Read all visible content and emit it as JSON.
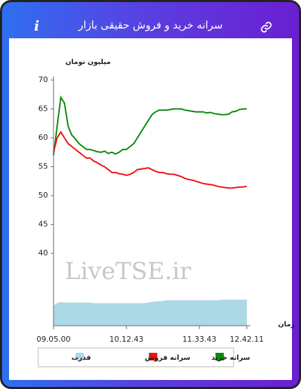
{
  "header": {
    "title": "سرانه خرید و فروش حقیقی بازار",
    "info": "i"
  },
  "chart_data": {
    "type": "line",
    "y_label": "میلیون تومان",
    "x_label": "زمان",
    "watermark": "LiveTSE.ir",
    "categories": [
      "09.05.00",
      null,
      null,
      null,
      null,
      null,
      null,
      null,
      null,
      null,
      null,
      null,
      null,
      null,
      null,
      null,
      null,
      null,
      null,
      null,
      "10.12.43",
      null,
      null,
      null,
      null,
      null,
      null,
      null,
      null,
      null,
      null,
      null,
      null,
      null,
      null,
      null,
      null,
      null,
      null,
      null,
      "11.33.43",
      null,
      null,
      null,
      null,
      null,
      null,
      null,
      null,
      null,
      null,
      null,
      null,
      "12.42.11"
    ],
    "ylim": [
      27.5,
      70
    ],
    "yticks": [
      40,
      45,
      50,
      55,
      60,
      65,
      70
    ],
    "series": [
      {
        "name": "سرانه خرید",
        "color": "#0a8a0a",
        "values": [
          57,
          62,
          67,
          66,
          62,
          60.5,
          59.8,
          59,
          58.5,
          58,
          58,
          57.8,
          57.6,
          57.5,
          57.7,
          57.3,
          57.5,
          57.2,
          57.5,
          58,
          58,
          58.5,
          59,
          60,
          61,
          62,
          63,
          64,
          64.5,
          64.8,
          64.8,
          64.8,
          64.9,
          65,
          65,
          65,
          64.8,
          64.7,
          64.6,
          64.5,
          64.5,
          64.5,
          64.3,
          64.4,
          64.2,
          64.1,
          64,
          64,
          64.1,
          64.5,
          64.6,
          64.9,
          65,
          65
        ]
      },
      {
        "name": "سرانه فروش",
        "color": "#ee1111",
        "values": [
          57.5,
          60,
          61,
          60,
          59,
          58.5,
          58,
          57.5,
          57,
          56.5,
          56.5,
          56,
          55.7,
          55.3,
          55,
          54.5,
          54,
          54,
          53.8,
          53.7,
          53.5,
          53.7,
          54,
          54.5,
          54.6,
          54.7,
          54.8,
          54.5,
          54.2,
          54,
          54,
          53.8,
          53.7,
          53.7,
          53.5,
          53.3,
          53,
          52.8,
          52.7,
          52.5,
          52.3,
          52.1,
          52,
          51.9,
          51.8,
          51.6,
          51.5,
          51.4,
          51.3,
          51.3,
          51.4,
          51.5,
          51.5,
          51.6
        ]
      },
      {
        "name": "قدرت",
        "color": "#add8e6",
        "kind": "area",
        "values": [
          31,
          31.4,
          31.6,
          31.5,
          31.5,
          31.5,
          31.5,
          31.5,
          31.5,
          31.5,
          31.5,
          31.4,
          31.4,
          31.4,
          31.4,
          31.4,
          31.4,
          31.4,
          31.4,
          31.4,
          31.4,
          31.4,
          31.4,
          31.4,
          31.4,
          31.4,
          31.5,
          31.6,
          31.7,
          31.7,
          31.8,
          31.9,
          31.9,
          31.9,
          31.9,
          31.9,
          31.9,
          31.9,
          31.9,
          31.9,
          31.9,
          31.9,
          31.9,
          31.9,
          31.9,
          31.9,
          32,
          32,
          32,
          32,
          32,
          32,
          32,
          32
        ]
      }
    ]
  }
}
